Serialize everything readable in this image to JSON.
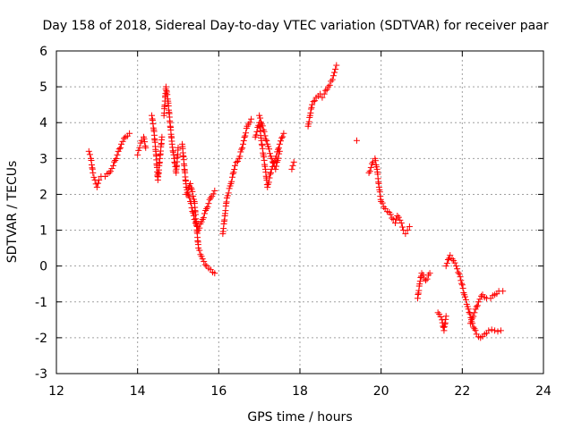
{
  "chart_data": {
    "type": "scatter",
    "title": "Day 158 of 2018, Sidereal Day-to-day VTEC variation (SDTVAR) for receiver paar",
    "xlabel": "GPS time / hours",
    "ylabel": "SDTVAR / TECUs",
    "xlim": [
      12,
      24
    ],
    "ylim": [
      -3,
      6
    ],
    "xticks": [
      "12",
      "14",
      "16",
      "18",
      "20",
      "22",
      "24"
    ],
    "yticks": [
      "-3",
      "-2",
      "-1",
      "0",
      "1",
      "2",
      "3",
      "4",
      "5",
      "6"
    ],
    "grid": true,
    "marker": "+",
    "color": "#ff0000",
    "series": [
      {
        "name": "SDTVAR",
        "segments": [
          [
            [
              12.8,
              3.2
            ],
            [
              12.85,
              3.0
            ],
            [
              12.9,
              2.6
            ],
            [
              12.95,
              2.4
            ],
            [
              13.0,
              2.2
            ],
            [
              13.05,
              2.4
            ],
            [
              13.1,
              2.5
            ],
            [
              13.2,
              2.5
            ],
            [
              13.3,
              2.6
            ],
            [
              13.4,
              2.8
            ],
            [
              13.5,
              3.1
            ],
            [
              13.6,
              3.4
            ],
            [
              13.7,
              3.6
            ],
            [
              13.8,
              3.7
            ]
          ],
          [
            [
              14.0,
              3.1
            ],
            [
              14.05,
              3.3
            ],
            [
              14.1,
              3.5
            ],
            [
              14.15,
              3.6
            ],
            [
              14.2,
              3.3
            ]
          ],
          [
            [
              14.35,
              4.2
            ],
            [
              14.4,
              3.8
            ],
            [
              14.45,
              3.2
            ],
            [
              14.5,
              2.4
            ],
            [
              14.55,
              3.0
            ],
            [
              14.6,
              3.6
            ]
          ],
          [
            [
              14.65,
              4.2
            ],
            [
              14.7,
              5.0
            ],
            [
              14.75,
              4.6
            ],
            [
              14.8,
              4.0
            ],
            [
              14.85,
              3.4
            ],
            [
              14.9,
              3.0
            ],
            [
              14.95,
              2.6
            ],
            [
              15.0,
              3.3
            ]
          ],
          [
            [
              15.1,
              3.4
            ],
            [
              15.15,
              2.8
            ],
            [
              15.2,
              2.2
            ],
            [
              15.3,
              1.8
            ],
            [
              15.4,
              1.3
            ],
            [
              15.5,
              1.0
            ],
            [
              15.6,
              1.3
            ],
            [
              15.7,
              1.6
            ],
            [
              15.8,
              1.9
            ],
            [
              15.9,
              2.1
            ]
          ],
          [
            [
              15.2,
              2.0
            ],
            [
              15.3,
              2.3
            ],
            [
              15.4,
              1.8
            ],
            [
              15.5,
              0.5
            ],
            [
              15.6,
              0.2
            ],
            [
              15.7,
              0.0
            ],
            [
              15.8,
              -0.1
            ],
            [
              15.9,
              -0.2
            ]
          ],
          [
            [
              16.1,
              0.9
            ],
            [
              16.15,
              1.4
            ],
            [
              16.2,
              1.9
            ],
            [
              16.3,
              2.3
            ],
            [
              16.4,
              2.8
            ],
            [
              16.5,
              3.0
            ],
            [
              16.6,
              3.4
            ],
            [
              16.7,
              3.9
            ],
            [
              16.8,
              4.1
            ]
          ],
          [
            [
              16.9,
              3.6
            ],
            [
              17.0,
              4.0
            ],
            [
              17.05,
              3.5
            ],
            [
              17.1,
              3.1
            ],
            [
              17.15,
              2.7
            ],
            [
              17.2,
              2.2
            ],
            [
              17.3,
              2.7
            ],
            [
              17.4,
              3.0
            ],
            [
              17.5,
              3.4
            ],
            [
              17.6,
              3.7
            ]
          ],
          [
            [
              17.0,
              4.2
            ],
            [
              17.1,
              3.8
            ],
            [
              17.2,
              3.4
            ],
            [
              17.3,
              3.0
            ],
            [
              17.4,
              2.7
            ],
            [
              17.5,
              3.2
            ]
          ],
          [
            [
              17.8,
              2.7
            ],
            [
              17.85,
              2.9
            ]
          ],
          [
            [
              18.2,
              3.9
            ],
            [
              18.25,
              4.2
            ],
            [
              18.3,
              4.5
            ],
            [
              18.4,
              4.7
            ],
            [
              18.5,
              4.8
            ],
            [
              18.55,
              4.7
            ],
            [
              18.6,
              4.8
            ],
            [
              18.7,
              5.0
            ],
            [
              18.8,
              5.2
            ],
            [
              18.85,
              5.4
            ],
            [
              18.9,
              5.6
            ]
          ],
          [
            [
              19.4,
              3.5
            ]
          ],
          [
            [
              19.7,
              2.6
            ],
            [
              19.8,
              2.9
            ],
            [
              19.85,
              3.0
            ],
            [
              19.9,
              2.7
            ],
            [
              19.95,
              2.2
            ],
            [
              20.0,
              1.8
            ],
            [
              20.1,
              1.6
            ],
            [
              20.2,
              1.5
            ],
            [
              20.3,
              1.3
            ],
            [
              20.35,
              1.2
            ],
            [
              20.4,
              1.4
            ],
            [
              20.5,
              1.2
            ],
            [
              20.55,
              1.0
            ],
            [
              20.6,
              0.9
            ],
            [
              20.65,
              1.0
            ],
            [
              20.7,
              1.1
            ]
          ],
          [
            [
              20.9,
              -0.9
            ],
            [
              20.95,
              -0.5
            ],
            [
              21.0,
              -0.2
            ],
            [
              21.1,
              -0.4
            ],
            [
              21.2,
              -0.2
            ]
          ],
          [
            [
              21.4,
              -1.3
            ],
            [
              21.5,
              -1.5
            ],
            [
              21.55,
              -1.8
            ],
            [
              21.6,
              -1.4
            ]
          ],
          [
            [
              21.6,
              0.0
            ],
            [
              21.7,
              0.3
            ],
            [
              21.75,
              0.2
            ],
            [
              21.85,
              0.0
            ],
            [
              21.95,
              -0.3
            ],
            [
              22.05,
              -0.8
            ],
            [
              22.15,
              -1.2
            ],
            [
              22.25,
              -1.6
            ],
            [
              22.35,
              -1.9
            ],
            [
              22.45,
              -2.0
            ],
            [
              22.55,
              -1.9
            ],
            [
              22.65,
              -1.8
            ],
            [
              22.8,
              -1.8
            ],
            [
              22.95,
              -1.8
            ]
          ],
          [
            [
              22.2,
              -1.6
            ],
            [
              22.3,
              -1.3
            ],
            [
              22.4,
              -1.0
            ],
            [
              22.5,
              -0.8
            ],
            [
              22.6,
              -0.9
            ],
            [
              22.7,
              -0.9
            ],
            [
              22.8,
              -0.8
            ],
            [
              22.9,
              -0.7
            ],
            [
              23.0,
              -0.7
            ]
          ]
        ]
      }
    ]
  }
}
